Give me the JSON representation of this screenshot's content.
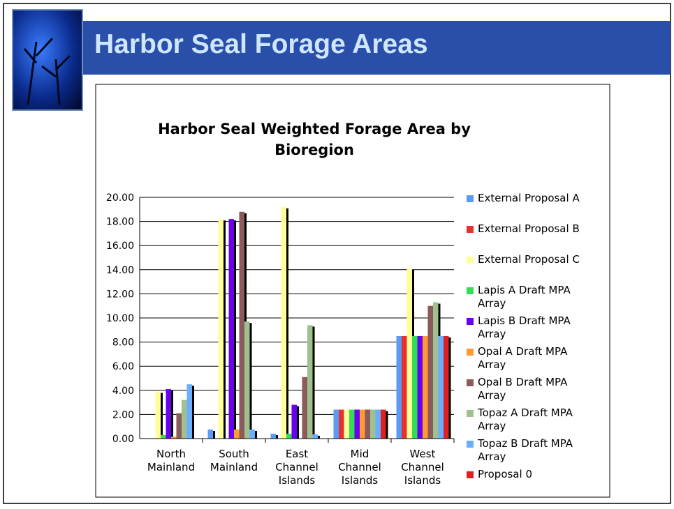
{
  "slide_title": "Harbor Seal Forage Areas",
  "chart_data": {
    "type": "bar",
    "title": "Harbor Seal Weighted Forage Area by Bioregion",
    "categories": [
      "North Mainland",
      "South Mainland",
      "East Channel Islands",
      "Mid Channel Islands",
      "West Channel Islands"
    ],
    "series": [
      {
        "name": "External Proposal A",
        "color": "#5b9bf5",
        "values": [
          0,
          0.75,
          0.4,
          2.4,
          8.5
        ]
      },
      {
        "name": "External Proposal B",
        "color": "#e83030",
        "values": [
          0,
          0,
          0,
          2.4,
          8.5
        ]
      },
      {
        "name": "External Proposal C",
        "color": "#ffff99",
        "values": [
          3.9,
          18.2,
          19.2,
          2.4,
          14.1
        ]
      },
      {
        "name": "Lapis A Draft MPA Array",
        "color": "#33dd55",
        "values": [
          0.3,
          0,
          0.4,
          2.4,
          8.5
        ]
      },
      {
        "name": "Lapis B Draft MPA Array",
        "color": "#6a00f0",
        "values": [
          4.1,
          18.2,
          2.8,
          2.4,
          8.5
        ]
      },
      {
        "name": "Opal A Draft MPA Array",
        "color": "#ff9a33",
        "values": [
          0.15,
          0.75,
          0,
          2.4,
          8.5
        ]
      },
      {
        "name": "Opal B Draft MPA Array",
        "color": "#8b5a5a",
        "values": [
          2.1,
          18.8,
          5.1,
          2.4,
          11.0
        ]
      },
      {
        "name": "Topaz A Draft MPA Array",
        "color": "#a0c090",
        "values": [
          3.2,
          9.7,
          9.4,
          2.4,
          11.3
        ]
      },
      {
        "name": "Topaz B Draft MPA Array",
        "color": "#6aaeff",
        "values": [
          4.5,
          0.75,
          0.35,
          2.4,
          8.5
        ]
      },
      {
        "name": "Proposal 0",
        "color": "#e02020",
        "values": [
          0,
          0,
          0,
          2.4,
          8.5
        ]
      }
    ],
    "ylim": [
      0,
      20
    ],
    "yticks": [
      {
        "value": 0,
        "label": "0.00"
      },
      {
        "value": 2,
        "label": "2.00"
      },
      {
        "value": 4,
        "label": "4.00"
      },
      {
        "value": 6,
        "label": "6.00"
      },
      {
        "value": 8,
        "label": "8.00"
      },
      {
        "value": 10,
        "label": "10.00"
      },
      {
        "value": 12,
        "label": "12.00"
      },
      {
        "value": 14,
        "label": "14.00"
      },
      {
        "value": 16,
        "label": "16.00"
      },
      {
        "value": 18,
        "label": "18.00"
      },
      {
        "value": 20,
        "label": "20.00"
      }
    ],
    "grid": true
  }
}
